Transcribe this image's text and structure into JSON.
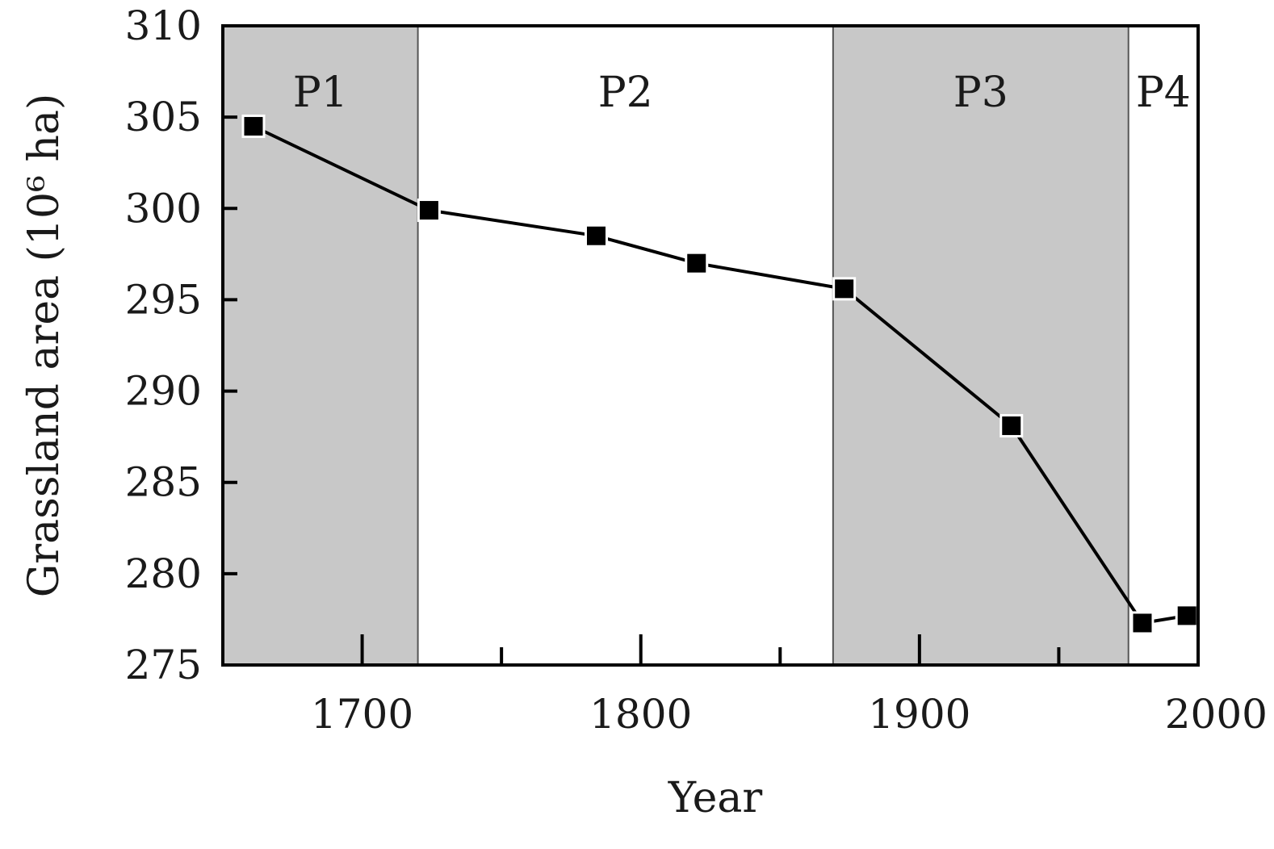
{
  "chart_data": {
    "type": "line",
    "title": "",
    "xlabel": "Year",
    "ylabel": "Grassland area (10⁶ ha)",
    "xlim": [
      1650,
      2000
    ],
    "ylim": [
      275,
      310
    ],
    "xticks_major": [
      1700,
      1800,
      1900,
      2000
    ],
    "xticks_minor": [
      1750,
      1850,
      1950
    ],
    "yticks": [
      275,
      280,
      285,
      290,
      295,
      300,
      305,
      310
    ],
    "grid": false,
    "legend": "none",
    "periods": [
      {
        "label": "P1",
        "start": 1650,
        "end": 1720,
        "shaded": true
      },
      {
        "label": "P2",
        "start": 1720,
        "end": 1869,
        "shaded": false
      },
      {
        "label": "P3",
        "start": 1869,
        "end": 1975,
        "shaded": true
      },
      {
        "label": "P4",
        "start": 1975,
        "end": 2000,
        "shaded": false
      }
    ],
    "series": [
      {
        "x": [
          1661,
          1724,
          1784,
          1820,
          1873,
          1933,
          1980,
          1996
        ],
        "y": [
          304.5,
          299.9,
          298.5,
          297.0,
          295.6,
          288.1,
          277.3,
          277.7
        ]
      }
    ],
    "colors": {
      "shade": "#c8c8c8",
      "line": "#000000",
      "marker": "#000000",
      "axis": "#000000",
      "divider": "#555555"
    }
  }
}
